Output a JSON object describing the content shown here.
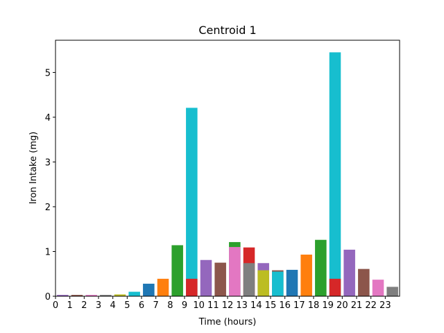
{
  "chart_data": {
    "type": "bar",
    "title": "Centroid 1",
    "xlabel": "Time (hours)",
    "ylabel": "Iron Intake (mg)",
    "xlim": [
      0,
      24
    ],
    "ylim": [
      0,
      5.72
    ],
    "x_ticks": [
      "0",
      "1",
      "2",
      "3",
      "4",
      "5",
      "6",
      "7",
      "8",
      "9",
      "10",
      "11",
      "12",
      "13",
      "14",
      "15",
      "16",
      "17",
      "18",
      "19",
      "20",
      "21",
      "22",
      "23"
    ],
    "y_ticks": [
      "0",
      "1",
      "2",
      "3",
      "4",
      "5"
    ],
    "grid": false,
    "colors": [
      "#1f77b4",
      "#ff7f0e",
      "#2ca02c",
      "#d62728",
      "#9467bd",
      "#8c564b",
      "#e377c2",
      "#7f7f7f",
      "#bcbd22",
      "#17becf"
    ],
    "bars": [
      {
        "x": 0,
        "base": 0,
        "value": 0.03,
        "color": "#9467bd"
      },
      {
        "x": 1,
        "base": 0,
        "value": 0.03,
        "color": "#8c564b"
      },
      {
        "x": 2,
        "base": 0,
        "value": 0.03,
        "color": "#e377c2"
      },
      {
        "x": 3,
        "base": 0,
        "value": 0.03,
        "color": "#7f7f7f"
      },
      {
        "x": 4,
        "base": 0,
        "value": 0.04,
        "color": "#bcbd22"
      },
      {
        "x": 5,
        "base": 0,
        "value": 0.1,
        "color": "#17becf"
      },
      {
        "x": 6,
        "base": 0,
        "value": 0.28,
        "color": "#1f77b4"
      },
      {
        "x": 7,
        "base": 0,
        "value": 0.39,
        "color": "#ff7f0e"
      },
      {
        "x": 8,
        "base": 0,
        "value": 1.14,
        "color": "#2ca02c"
      },
      {
        "x": 9,
        "base": 0,
        "value": 4.21,
        "color": "#17becf"
      },
      {
        "x": 9,
        "base": 0,
        "value": 0.39,
        "color": "#d62728"
      },
      {
        "x": 10,
        "base": 0,
        "value": 0.81,
        "color": "#9467bd"
      },
      {
        "x": 11,
        "base": 0,
        "value": 0.75,
        "color": "#8c564b"
      },
      {
        "x": 12,
        "base": 0,
        "value": 1.21,
        "color": "#2ca02c"
      },
      {
        "x": 12,
        "base": 0,
        "value": 1.1,
        "color": "#e377c2"
      },
      {
        "x": 13,
        "base": 0,
        "value": 1.09,
        "color": "#d62728"
      },
      {
        "x": 13,
        "base": 0,
        "value": 0.74,
        "color": "#7f7f7f"
      },
      {
        "x": 14,
        "base": 0,
        "value": 0.74,
        "color": "#9467bd"
      },
      {
        "x": 14,
        "base": 0,
        "value": 0.58,
        "color": "#bcbd22"
      },
      {
        "x": 15,
        "base": 0,
        "value": 0.58,
        "color": "#8c564b"
      },
      {
        "x": 15,
        "base": 0,
        "value": 0.55,
        "color": "#17becf"
      },
      {
        "x": 16,
        "base": 0,
        "value": 0.59,
        "color": "#1f77b4"
      },
      {
        "x": 17,
        "base": 0,
        "value": 0.93,
        "color": "#ff7f0e"
      },
      {
        "x": 18,
        "base": 0,
        "value": 1.26,
        "color": "#2ca02c"
      },
      {
        "x": 19,
        "base": 0,
        "value": 5.45,
        "color": "#17becf"
      },
      {
        "x": 19,
        "base": 0,
        "value": 0.39,
        "color": "#d62728"
      },
      {
        "x": 20,
        "base": 0,
        "value": 1.04,
        "color": "#9467bd"
      },
      {
        "x": 21,
        "base": 0,
        "value": 0.61,
        "color": "#8c564b"
      },
      {
        "x": 22,
        "base": 0,
        "value": 0.37,
        "color": "#e377c2"
      },
      {
        "x": 23,
        "base": 0,
        "value": 0.21,
        "color": "#7f7f7f"
      }
    ]
  }
}
